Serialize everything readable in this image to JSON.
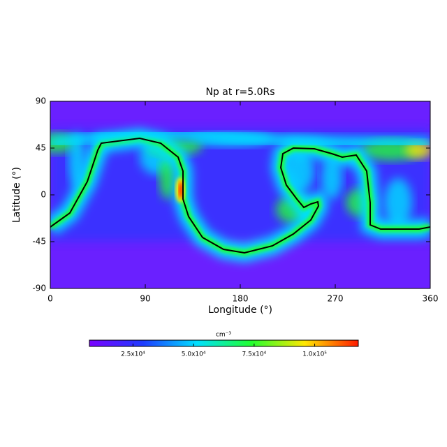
{
  "chart_data": {
    "type": "heatmap",
    "title": "Np at r=5.0Rs",
    "x_label": "Longitude (°)",
    "y_label": "Latitude (°)",
    "xlim": [
      0,
      360
    ],
    "xticks": [
      0,
      90,
      180,
      270,
      360
    ],
    "ylim": [
      -90,
      90
    ],
    "yticks": [
      -90,
      -45,
      0,
      45,
      90
    ],
    "colormap": [
      "#7a00ff",
      "#1e3cff",
      "#00e0ff",
      "#20ff30",
      "#ffe800",
      "#ff1a00"
    ],
    "colorbar": {
      "label": "cm⁻³",
      "lim": [
        7000,
        118000
      ],
      "ticks": [
        {
          "value": 25000,
          "label": "2.5x10⁴"
        },
        {
          "value": 50000,
          "label": "5.0x10⁴"
        },
        {
          "value": 75000,
          "label": "7.5x10⁴"
        },
        {
          "value": 100000,
          "label": "1.0x10⁵"
        }
      ]
    }
  }
}
